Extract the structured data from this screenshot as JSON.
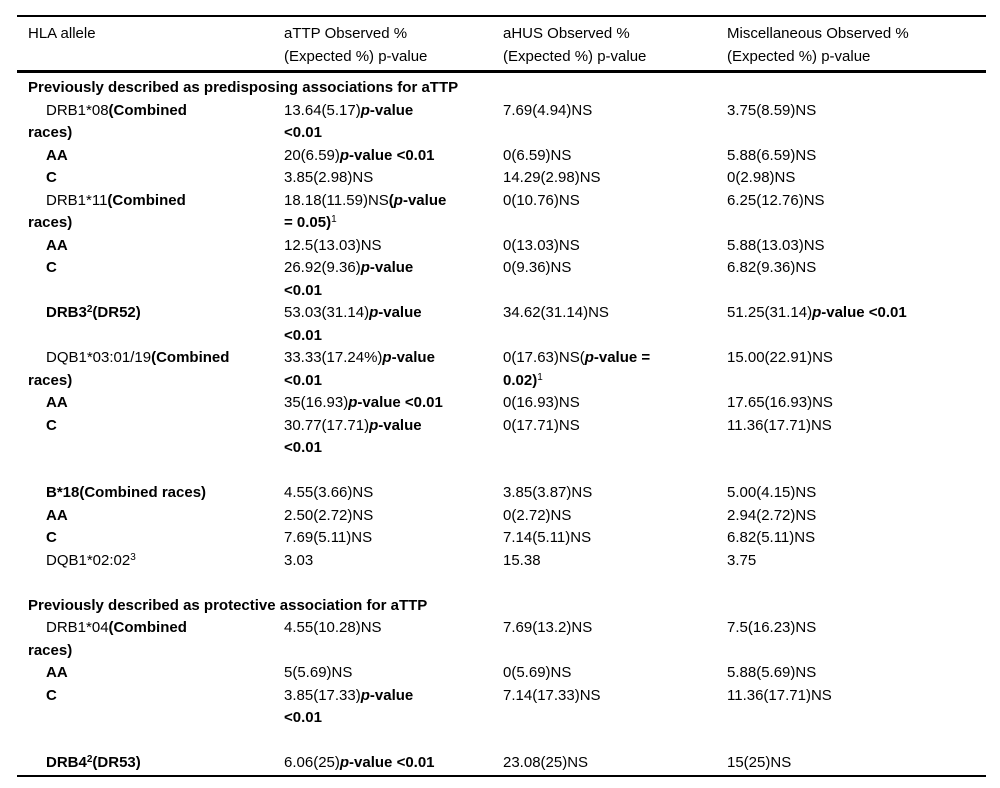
{
  "colors": {
    "text": "#000000",
    "background": "#ffffff",
    "rule": "#000000"
  },
  "table": {
    "column_keys": [
      "hla-allele",
      "attp",
      "ahus",
      "misc"
    ],
    "headers": [
      "HLA allele",
      "aTTP Observed %\n(Expected %) p-value",
      "aHUS Observed %\n(Expected %) p-value",
      "Miscellaneous Observed %\n(Expected %) p-value"
    ],
    "rows": [
      {
        "type": "section",
        "label": "Previously described as predisposing associations for aTTP"
      },
      {
        "type": "data",
        "cells": [
          [
            {
              "t": "DRB1*08"
            },
            {
              "t": "(Combined\nraces)",
              "b": true
            }
          ],
          [
            {
              "t": "13.64(5.17)"
            },
            {
              "t": "p",
              "b": true,
              "i": true
            },
            {
              "t": "-value\n<0.01",
              "b": true
            }
          ],
          [
            {
              "t": "7.69(4.94)NS"
            }
          ],
          [
            {
              "t": "3.75(8.59)NS"
            }
          ]
        ]
      },
      {
        "type": "data",
        "cells": [
          [
            {
              "t": "AA",
              "b": true
            }
          ],
          [
            {
              "t": "20(6.59)"
            },
            {
              "t": "p",
              "b": true,
              "i": true
            },
            {
              "t": "-value <0.01",
              "b": true
            }
          ],
          [
            {
              "t": "0(6.59)NS"
            }
          ],
          [
            {
              "t": "5.88(6.59)NS"
            }
          ]
        ]
      },
      {
        "type": "data",
        "cells": [
          [
            {
              "t": "C",
              "b": true
            }
          ],
          [
            {
              "t": "3.85(2.98)NS"
            }
          ],
          [
            {
              "t": "14.29(2.98)NS"
            }
          ],
          [
            {
              "t": "0(2.98)NS"
            }
          ]
        ]
      },
      {
        "type": "data",
        "cells": [
          [
            {
              "t": "DRB1*11"
            },
            {
              "t": "(Combined\nraces)",
              "b": true
            }
          ],
          [
            {
              "t": "18.18(11.59)NS"
            },
            {
              "t": "(",
              "b": true
            },
            {
              "t": "p",
              "b": true,
              "i": true
            },
            {
              "t": "-value\n= 0.05)",
              "b": true
            },
            {
              "t": "1",
              "sup": true
            }
          ],
          [
            {
              "t": "0(10.76)NS"
            }
          ],
          [
            {
              "t": "6.25(12.76)NS"
            }
          ]
        ]
      },
      {
        "type": "data",
        "cells": [
          [
            {
              "t": "AA",
              "b": true
            }
          ],
          [
            {
              "t": "12.5(13.03)NS"
            }
          ],
          [
            {
              "t": "0(13.03)NS"
            }
          ],
          [
            {
              "t": "5.88(13.03)NS"
            }
          ]
        ]
      },
      {
        "type": "data",
        "cells": [
          [
            {
              "t": "C",
              "b": true
            }
          ],
          [
            {
              "t": "26.92(9.36)"
            },
            {
              "t": "p",
              "b": true,
              "i": true
            },
            {
              "t": "-value\n<0.01",
              "b": true
            }
          ],
          [
            {
              "t": "0(9.36)NS"
            }
          ],
          [
            {
              "t": "6.82(9.36)NS"
            }
          ]
        ]
      },
      {
        "type": "data",
        "cells": [
          [
            {
              "t": "DRB3",
              "b": true
            },
            {
              "t": "2",
              "b": true,
              "sup": true
            },
            {
              "t": "(DR52)",
              "b": true
            }
          ],
          [
            {
              "t": "53.03(31.14)"
            },
            {
              "t": "p",
              "b": true,
              "i": true
            },
            {
              "t": "-value\n<0.01",
              "b": true
            }
          ],
          [
            {
              "t": "34.62(31.14)NS"
            }
          ],
          [
            {
              "t": "51.25(31.14)"
            },
            {
              "t": "p",
              "b": true,
              "i": true
            },
            {
              "t": "-value <0.01",
              "b": true
            }
          ]
        ]
      },
      {
        "type": "data",
        "cells": [
          [
            {
              "t": "DQB1*03:01/19"
            },
            {
              "t": "(Combined\nraces)",
              "b": true
            }
          ],
          [
            {
              "t": "33.33(17.24%)"
            },
            {
              "t": "p",
              "b": true,
              "i": true
            },
            {
              "t": "-value\n<0.01",
              "b": true
            }
          ],
          [
            {
              "t": "0(17.63)NS("
            },
            {
              "t": "p",
              "b": true,
              "i": true
            },
            {
              "t": "-value =\n0.02)",
              "b": true
            },
            {
              "t": "1",
              "sup": true
            }
          ],
          [
            {
              "t": "15.00(22.91)NS"
            }
          ]
        ]
      },
      {
        "type": "data",
        "cells": [
          [
            {
              "t": "AA",
              "b": true
            }
          ],
          [
            {
              "t": "35(16.93)"
            },
            {
              "t": "p",
              "b": true,
              "i": true
            },
            {
              "t": "-value <0.01",
              "b": true
            }
          ],
          [
            {
              "t": "0(16.93)NS"
            }
          ],
          [
            {
              "t": "17.65(16.93)NS"
            }
          ]
        ]
      },
      {
        "type": "data",
        "cells": [
          [
            {
              "t": "C",
              "b": true
            }
          ],
          [
            {
              "t": "30.77(17.71)"
            },
            {
              "t": "p",
              "b": true,
              "i": true
            },
            {
              "t": "-value\n<0.01",
              "b": true
            }
          ],
          [
            {
              "t": "0(17.71)NS"
            }
          ],
          [
            {
              "t": "11.36(17.71)NS"
            }
          ]
        ]
      },
      {
        "type": "spacer"
      },
      {
        "type": "data",
        "cells": [
          [
            {
              "t": "B*18(Combined races)",
              "b": true
            }
          ],
          [
            {
              "t": "4.55(3.66)NS"
            }
          ],
          [
            {
              "t": "3.85(3.87)NS"
            }
          ],
          [
            {
              "t": "5.00(4.15)NS"
            }
          ]
        ]
      },
      {
        "type": "data",
        "cells": [
          [
            {
              "t": "AA",
              "b": true
            }
          ],
          [
            {
              "t": "2.50(2.72)NS"
            }
          ],
          [
            {
              "t": "0(2.72)NS"
            }
          ],
          [
            {
              "t": "2.94(2.72)NS"
            }
          ]
        ]
      },
      {
        "type": "data",
        "cells": [
          [
            {
              "t": "C",
              "b": true
            }
          ],
          [
            {
              "t": "7.69(5.11)NS"
            }
          ],
          [
            {
              "t": "7.14(5.11)NS"
            }
          ],
          [
            {
              "t": "6.82(5.11)NS"
            }
          ]
        ]
      },
      {
        "type": "data",
        "cells": [
          [
            {
              "t": "DQB1*02:02"
            },
            {
              "t": "3",
              "sup": true
            }
          ],
          [
            {
              "t": "3.03"
            }
          ],
          [
            {
              "t": "15.38"
            }
          ],
          [
            {
              "t": "3.75"
            }
          ]
        ]
      },
      {
        "type": "spacer"
      },
      {
        "type": "section",
        "label": "Previously described as protective association for aTTP"
      },
      {
        "type": "data",
        "cells": [
          [
            {
              "t": "DRB1*04"
            },
            {
              "t": "(Combined\nraces)",
              "b": true
            }
          ],
          [
            {
              "t": "4.55(10.28)NS"
            }
          ],
          [
            {
              "t": "7.69(13.2)NS"
            }
          ],
          [
            {
              "t": "7.5(16.23)NS"
            }
          ]
        ]
      },
      {
        "type": "data",
        "cells": [
          [
            {
              "t": "AA",
              "b": true
            }
          ],
          [
            {
              "t": "5(5.69)NS"
            }
          ],
          [
            {
              "t": "0(5.69)NS"
            }
          ],
          [
            {
              "t": "5.88(5.69)NS"
            }
          ]
        ]
      },
      {
        "type": "data",
        "cells": [
          [
            {
              "t": "C",
              "b": true
            }
          ],
          [
            {
              "t": "3.85(17.33)"
            },
            {
              "t": "p",
              "b": true,
              "i": true
            },
            {
              "t": "-value\n<0.01",
              "b": true
            }
          ],
          [
            {
              "t": "7.14(17.33)NS"
            }
          ],
          [
            {
              "t": "11.36(17.71)NS"
            }
          ]
        ]
      },
      {
        "type": "spacer"
      },
      {
        "type": "data",
        "cells": [
          [
            {
              "t": "DRB4",
              "b": true
            },
            {
              "t": "2",
              "b": true,
              "sup": true
            },
            {
              "t": "(DR53)",
              "b": true
            }
          ],
          [
            {
              "t": "6.06(25)"
            },
            {
              "t": "p",
              "b": true,
              "i": true
            },
            {
              "t": "-value <0.01",
              "b": true
            }
          ],
          [
            {
              "t": "23.08(25)NS"
            }
          ],
          [
            {
              "t": "15(25)NS"
            }
          ]
        ]
      }
    ]
  }
}
